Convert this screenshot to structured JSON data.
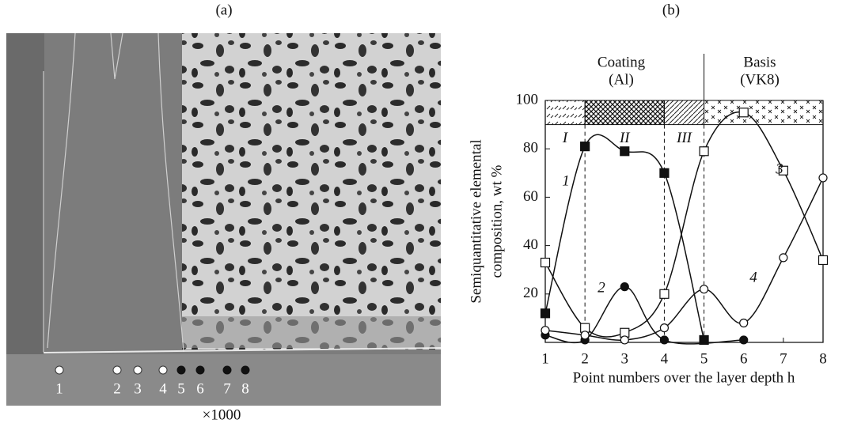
{
  "panel_a": {
    "label": "(a)",
    "points": [
      "1",
      "2",
      "3",
      "4",
      "5",
      "6",
      "7",
      "8"
    ],
    "magnification": "×1000"
  },
  "chart_data": {
    "type": "line",
    "label": "(b)",
    "y_label": [
      "Semiquantitative elemental",
      "composition, wt %"
    ],
    "x_label": "Point numbers over the layer depth h",
    "coating_header": [
      "Coating",
      "(Al)"
    ],
    "basis_header": [
      "Basis",
      "(VK8)"
    ],
    "zones": [
      {
        "label": "I",
        "from": 1,
        "to": 2
      },
      {
        "label": "II",
        "from": 2,
        "to": 4
      },
      {
        "label": "III",
        "from": 4,
        "to": 5
      },
      {
        "from": 5,
        "to": 8
      }
    ],
    "band_bottom": 90,
    "xlim": [
      1,
      8
    ],
    "xticks": [
      1,
      2,
      3,
      4,
      5,
      6,
      7,
      8
    ],
    "ylim": [
      0,
      100
    ],
    "yticks": [
      20,
      40,
      60,
      80,
      100
    ],
    "series": [
      {
        "name": "1",
        "marker": "filled-square",
        "x": [
          1,
          2,
          3,
          4,
          5
        ],
        "values": [
          12,
          81,
          79,
          70,
          1
        ]
      },
      {
        "name": "2",
        "marker": "filled-circle",
        "x": [
          1,
          2,
          3,
          4,
          6
        ],
        "values": [
          3,
          1,
          23,
          1,
          1
        ]
      },
      {
        "name": "3",
        "marker": "open-square",
        "x": [
          1,
          2,
          3,
          4,
          5,
          6,
          7,
          8
        ],
        "values": [
          33,
          6,
          4,
          20,
          79,
          95,
          71,
          34
        ]
      },
      {
        "name": "4",
        "marker": "open-circle",
        "x": [
          1,
          2,
          3,
          4,
          5,
          6,
          7,
          8
        ],
        "values": [
          5,
          3,
          1,
          6,
          22,
          8,
          35,
          68
        ]
      }
    ]
  }
}
